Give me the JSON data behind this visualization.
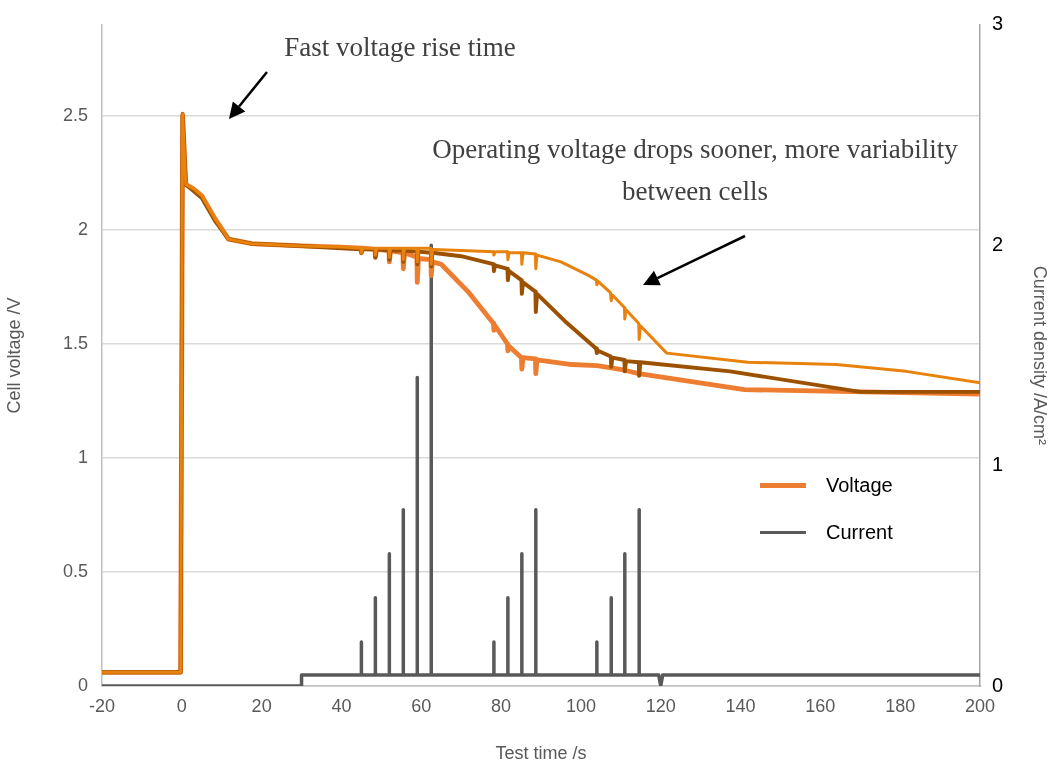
{
  "chart_data": {
    "type": "line",
    "xlabel": "Test time /s",
    "ylabel": "Cell voltage /V",
    "y2label": "Current density /A/cm²",
    "annotations": [
      "Fast voltage rise time",
      "Operating voltage drops sooner, more variability between cells"
    ],
    "xlim": [
      -20,
      200
    ],
    "xticks": [
      -20,
      0,
      20,
      40,
      60,
      80,
      100,
      120,
      140,
      160,
      180,
      200
    ],
    "ylim": [
      0,
      2.9
    ],
    "yticks": [
      0,
      0.5,
      1,
      1.5,
      2,
      2.5
    ],
    "y2lim": [
      0,
      3
    ],
    "y2ticks": [
      0,
      1,
      2,
      3
    ],
    "grid": "y",
    "legend": "right",
    "series": [
      {
        "color": "#e8820c",
        "x": [
          -20,
          -0.3,
          0.2,
          1,
          3,
          5,
          8.3,
          11.7,
          17.5,
          30,
          40,
          44.9,
          45,
          45.3,
          48.4,
          48.5,
          48.8,
          51.9,
          52,
          52.3,
          55.4,
          55.5,
          55.8,
          58.9,
          59,
          59.3,
          62.4,
          62.5,
          62.8,
          70,
          78.1,
          78.2,
          78.5,
          81.6,
          81.7,
          82,
          85.1,
          85.2,
          85.5,
          88.6,
          88.7,
          89,
          95,
          102,
          103.9,
          104,
          104.3,
          107.4,
          107.6,
          107.9,
          110.9,
          111,
          111.3,
          114.5,
          114.6,
          114.9,
          121.5,
          141.8,
          164,
          181.5,
          200
        ],
        "values": [
          0.06,
          0.06,
          2.51,
          2.2,
          2.18,
          2.15,
          2.05,
          1.96,
          1.94,
          1.93,
          1.925,
          1.92,
          1.9,
          1.92,
          1.92,
          1.89,
          1.92,
          1.92,
          1.88,
          1.92,
          1.92,
          1.87,
          1.92,
          1.92,
          1.86,
          1.92,
          1.92,
          1.85,
          1.915,
          1.91,
          1.905,
          1.89,
          1.905,
          1.905,
          1.87,
          1.9,
          1.9,
          1.85,
          1.9,
          1.895,
          1.83,
          1.89,
          1.86,
          1.8,
          1.78,
          1.76,
          1.775,
          1.725,
          1.69,
          1.715,
          1.66,
          1.61,
          1.65,
          1.59,
          1.52,
          1.58,
          1.46,
          1.42,
          1.41,
          1.38,
          1.33
        ]
      },
      {
        "color": "#9c5100",
        "x": [
          -20,
          -0.3,
          0.2,
          1,
          3,
          5,
          8.3,
          11.7,
          17.5,
          30,
          40,
          44.9,
          45,
          45.3,
          48.4,
          48.5,
          48.8,
          51.9,
          52,
          52.3,
          55.4,
          55.5,
          55.8,
          58.9,
          59,
          59.3,
          62.4,
          62.5,
          62.8,
          70,
          75.8,
          78.1,
          78.2,
          78.5,
          81.6,
          81.7,
          82,
          85.1,
          85.2,
          85.5,
          88.6,
          88.7,
          89,
          96,
          103.8,
          104,
          104.3,
          107.5,
          107.6,
          107.9,
          110.9,
          111,
          111.3,
          114.5,
          114.6,
          114.9,
          137.4,
          170,
          200
        ],
        "values": [
          0.06,
          0.06,
          2.51,
          2.2,
          2.17,
          2.14,
          2.04,
          1.96,
          1.94,
          1.93,
          1.92,
          1.915,
          1.9,
          1.915,
          1.915,
          1.88,
          1.915,
          1.91,
          1.87,
          1.91,
          1.91,
          1.86,
          1.91,
          1.905,
          1.85,
          1.905,
          1.9,
          1.84,
          1.9,
          1.885,
          1.86,
          1.85,
          1.82,
          1.845,
          1.83,
          1.78,
          1.82,
          1.78,
          1.72,
          1.77,
          1.73,
          1.64,
          1.72,
          1.6,
          1.48,
          1.46,
          1.47,
          1.445,
          1.4,
          1.44,
          1.43,
          1.38,
          1.425,
          1.42,
          1.36,
          1.42,
          1.38,
          1.29,
          1.29
        ]
      },
      {
        "name": "Voltage",
        "color": "#ed7d31",
        "x": [
          -20,
          -0.3,
          0.2,
          1,
          3,
          5,
          8.3,
          11.7,
          17.5,
          30,
          40,
          44.9,
          45,
          45.3,
          48.4,
          48.5,
          48.8,
          51.9,
          52,
          52.3,
          55.4,
          55.5,
          55.8,
          58.9,
          59,
          59.3,
          62.4,
          62.5,
          62.8,
          65,
          71.7,
          78.1,
          78.2,
          78.5,
          81.6,
          81.7,
          82,
          85.1,
          85.2,
          85.5,
          88.6,
          88.7,
          89,
          97.7,
          104,
          107.6,
          111,
          114.5,
          141,
          200
        ],
        "values": [
          0.06,
          0.06,
          2.5,
          2.2,
          2.18,
          2.15,
          2.05,
          1.96,
          1.94,
          1.93,
          1.925,
          1.92,
          1.9,
          1.92,
          1.915,
          1.88,
          1.915,
          1.91,
          1.86,
          1.91,
          1.9,
          1.83,
          1.9,
          1.88,
          1.77,
          1.875,
          1.87,
          1.8,
          1.86,
          1.85,
          1.73,
          1.59,
          1.56,
          1.58,
          1.5,
          1.47,
          1.49,
          1.44,
          1.39,
          1.44,
          1.435,
          1.37,
          1.43,
          1.41,
          1.405,
          1.395,
          1.385,
          1.37,
          1.3,
          1.28
        ]
      },
      {
        "name": "Current",
        "color": "#595959",
        "axis": "y2",
        "x": [
          -20,
          30,
          30,
          45,
          45,
          45,
          48.5,
          48.5,
          48.5,
          52,
          52,
          52,
          55.5,
          55.5,
          55.5,
          59,
          59,
          59,
          62.5,
          62.5,
          62.5,
          78.2,
          78.2,
          78.2,
          81.7,
          81.7,
          81.7,
          85.2,
          85.2,
          85.2,
          88.7,
          88.7,
          88.7,
          104,
          104,
          104,
          107.6,
          107.6,
          107.6,
          111,
          111,
          111,
          114.6,
          114.6,
          114.6,
          119.5,
          120,
          120.5,
          200
        ],
        "values": [
          0,
          0,
          0.05,
          0.05,
          0.2,
          0.05,
          0.05,
          0.4,
          0.05,
          0.05,
          0.6,
          0.05,
          0.05,
          0.8,
          0.05,
          0.05,
          1.4,
          0.05,
          0.05,
          2,
          0.05,
          0.05,
          0.2,
          0.05,
          0.05,
          0.4,
          0.05,
          0.05,
          0.6,
          0.05,
          0.05,
          0.8,
          0.05,
          0.05,
          0.2,
          0.05,
          0.05,
          0.4,
          0.05,
          0.05,
          0.6,
          0.05,
          0.05,
          0.8,
          0.05,
          0.05,
          0,
          0.05,
          0.05
        ]
      }
    ]
  }
}
